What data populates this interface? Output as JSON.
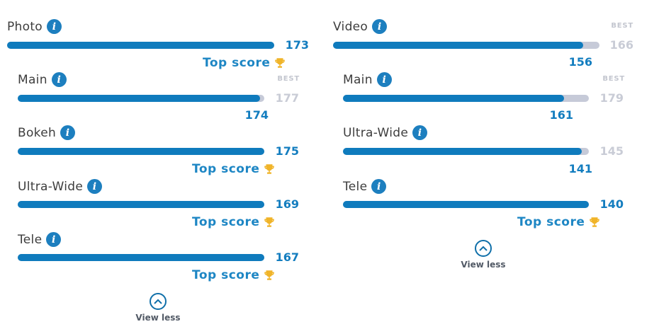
{
  "info_glyph": "i",
  "left": {
    "header": {
      "label": "Photo",
      "value": "173",
      "progress": 1.0,
      "note": "Top score"
    },
    "items": [
      {
        "label": "Main",
        "best_label": "BEST",
        "best_value": "177",
        "value": "174",
        "progress": 0.983
      },
      {
        "label": "Bokeh",
        "value": "175",
        "progress": 1.0,
        "note": "Top score"
      },
      {
        "label": "Ultra-Wide",
        "value": "169",
        "progress": 1.0,
        "note": "Top score"
      },
      {
        "label": "Tele",
        "value": "167",
        "progress": 1.0,
        "note": "Top score"
      }
    ],
    "view_less": "View less"
  },
  "right": {
    "header": {
      "label": "Video",
      "best_label": "BEST",
      "best_value": "166",
      "value": "156",
      "progress": 0.94
    },
    "items": [
      {
        "label": "Main",
        "best_label": "BEST",
        "best_value": "179",
        "value": "161",
        "progress": 0.9
      },
      {
        "label": "Ultra-Wide",
        "best_value": "145",
        "value": "141",
        "progress": 0.97
      },
      {
        "label": "Tele",
        "value": "140",
        "progress": 1.0,
        "note": "Top score"
      }
    ],
    "view_less": "View less"
  },
  "colors": {
    "bar": "#0f7bbd",
    "track": "#c6cad8",
    "accent": "#137dbf",
    "trophy": "#f0b429"
  },
  "icons": {
    "info": "info-icon",
    "trophy": "trophy-icon",
    "chevron": "chevron-up-icon"
  }
}
